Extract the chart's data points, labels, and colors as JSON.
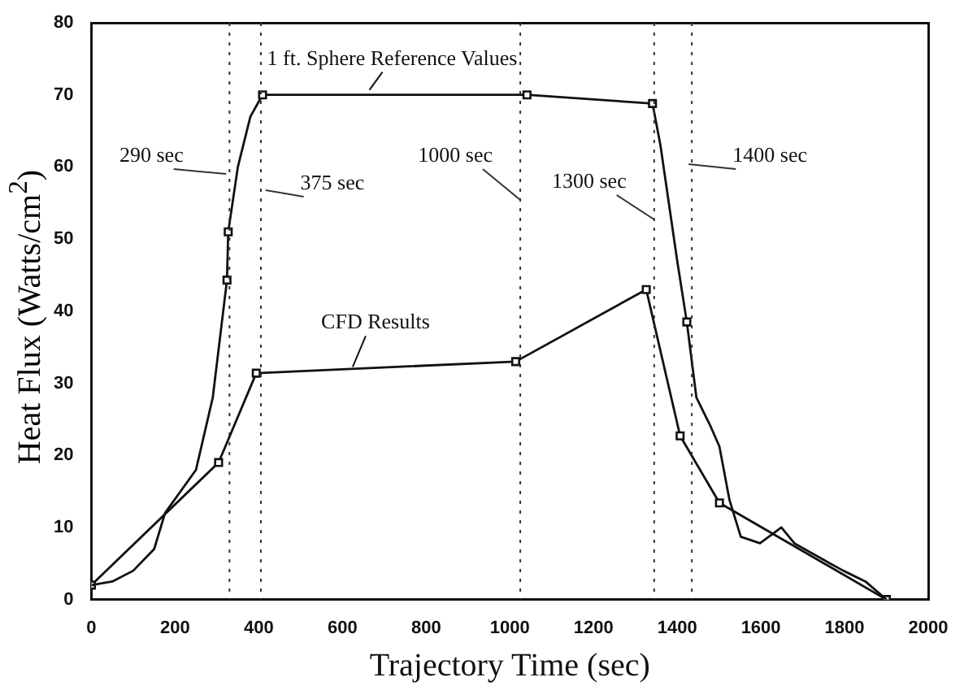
{
  "chart_data": {
    "type": "line",
    "xlabel": "Trajectory Time (sec)",
    "ylabel": "Heat Flux (Watts/cm$^{2}$)",
    "xlim": [
      0,
      2000
    ],
    "xticks": [
      0,
      200,
      400,
      600,
      800,
      1000,
      1200,
      1400,
      1600,
      1800,
      2000
    ],
    "ylim": [
      0,
      80
    ],
    "yticks": [
      0,
      10,
      20,
      30,
      40,
      50,
      60,
      70,
      80
    ],
    "grid": false,
    "legend": false,
    "line_style": "solid",
    "series": [
      {
        "type": "line",
        "marker": "none",
        "color": "#111111",
        "x": [
          0,
          50,
          100,
          150,
          176,
          250,
          290,
          324,
          327,
          350,
          380,
          409,
          1041,
          1341,
          1360,
          1380,
          1400,
          1423,
          1446,
          1480,
          1501,
          1525,
          1552,
          1598,
          1649,
          1680,
          1750,
          1797,
          1850,
          1900
        ],
        "values": [
          2,
          2.5,
          4,
          7,
          12,
          18,
          28,
          44.3,
          51,
          60,
          67,
          70,
          70,
          68.8,
          63,
          55,
          47,
          38.5,
          28,
          24,
          21.2,
          13.8,
          8.7,
          7.8,
          10,
          7.8,
          5.5,
          4,
          2.5,
          0
        ]
      },
      {
        "type": "scatter",
        "marker": "square",
        "color": "#111111",
        "x": [
          324,
          327,
          409,
          1041,
          1341,
          1423
        ],
        "values": [
          44.3,
          51,
          70,
          70,
          68.8,
          38.5
        ]
      },
      {
        "type": "line",
        "marker": "square",
        "color": "#111111",
        "x": [
          0,
          304,
          394,
          1014,
          1326,
          1407,
          1501,
          1900
        ],
        "values": [
          2,
          19,
          31.4,
          33,
          43,
          22.7,
          13.4,
          0
        ]
      }
    ],
    "ref_lines": [
      {
        "axis": "x",
        "value": 330,
        "label": "290 sec",
        "line_style": "dotted"
      },
      {
        "axis": "x",
        "value": 405,
        "label": "375 sec",
        "line_style": "dotted"
      },
      {
        "axis": "x",
        "value": 1025,
        "label": "1000 sec",
        "line_style": "dotted"
      },
      {
        "axis": "x",
        "value": 1345,
        "label": "1300 sec",
        "line_style": "dotted"
      },
      {
        "axis": "x",
        "value": 1435,
        "label": "1400 sec",
        "line_style": "dotted"
      }
    ],
    "annotations": [
      {
        "text": "1 ft. Sphere Reference Values",
        "x": 680,
        "y": 70
      },
      {
        "text": "CFD Results",
        "x": 640,
        "y": 31.6
      }
    ]
  }
}
